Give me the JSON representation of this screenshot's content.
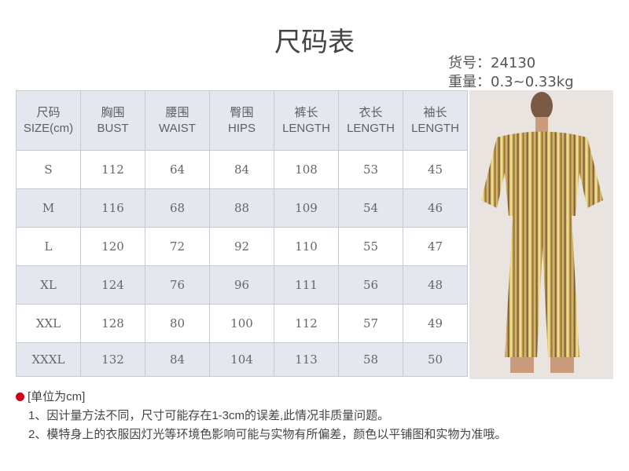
{
  "title": "尺码表",
  "product": {
    "item_no": "货号：24130",
    "weight": "重量：0.3~0.33kg"
  },
  "table": {
    "headers": [
      [
        "尺码",
        "SIZE(cm)"
      ],
      [
        "胸围",
        "BUST"
      ],
      [
        "腰围",
        "WAIST"
      ],
      [
        "臀围",
        "HIPS"
      ],
      [
        "裤长",
        "LENGTH"
      ],
      [
        "衣长",
        "LENGTH"
      ],
      [
        "袖长",
        "LENGTH"
      ]
    ],
    "rows": [
      [
        "S",
        "112",
        "64",
        "84",
        "108",
        "53",
        "45"
      ],
      [
        "M",
        "116",
        "68",
        "88",
        "109",
        "54",
        "46"
      ],
      [
        "L",
        "120",
        "72",
        "92",
        "110",
        "55",
        "47"
      ],
      [
        "XL",
        "124",
        "76",
        "96",
        "111",
        "56",
        "48"
      ],
      [
        "XXL",
        "128",
        "80",
        "100",
        "112",
        "57",
        "49"
      ],
      [
        "XXXL",
        "132",
        "84",
        "104",
        "113",
        "58",
        "50"
      ]
    ]
  },
  "notes": {
    "unit": "[单位为cm]",
    "items": [
      "1、因计量方法不同，尺寸可能存在1-3cm的误差,此情况非质量问题。",
      "2、模特身上的衣服因灯光等环境色影响可能与实物有所偏差，颜色以平铺图和实物为准哦。"
    ],
    "bullet_color": "#d0021b"
  }
}
